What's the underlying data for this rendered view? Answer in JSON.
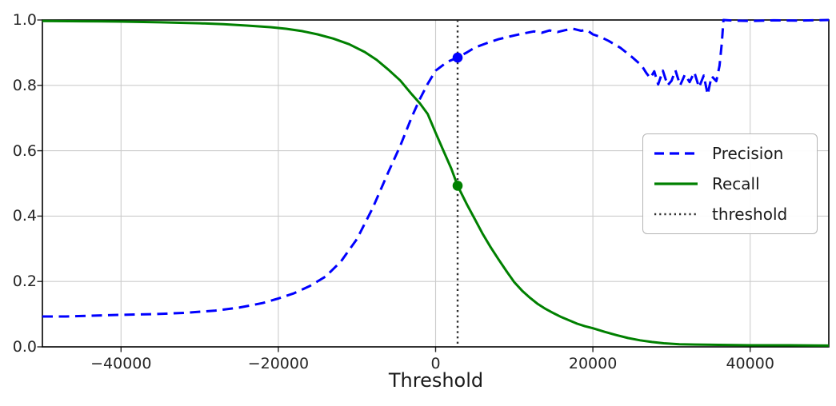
{
  "chart_data": {
    "type": "line",
    "title": "",
    "xlabel": "Threshold",
    "ylabel": "",
    "x_range": [
      -50000,
      50000
    ],
    "y_range": [
      0.0,
      1.0
    ],
    "x_ticks": [
      -40000,
      -20000,
      0,
      20000,
      40000
    ],
    "x_tick_labels": [
      "−40000",
      "−20000",
      "0",
      "20000",
      "40000"
    ],
    "y_ticks": [
      0.0,
      0.2,
      0.4,
      0.6,
      0.8,
      1.0
    ],
    "y_tick_labels": [
      "0.0",
      "0.2",
      "0.4",
      "0.6",
      "0.8",
      "1.0"
    ],
    "grid": true,
    "colors": {
      "precision": "#0000ff",
      "recall": "#008000",
      "threshold": "#2e2e2e",
      "grid": "#cccccc",
      "spine": "#000000",
      "tick": "#262626"
    },
    "legend": {
      "position": "center-right",
      "entries": [
        {
          "label": "Precision",
          "color": "#0000ff",
          "style": "dashed"
        },
        {
          "label": "Recall",
          "color": "#008000",
          "style": "solid"
        },
        {
          "label": "threshold",
          "color": "#2e2e2e",
          "style": "dotted"
        }
      ]
    },
    "threshold_line": {
      "x": 2800,
      "style": "dotted",
      "color": "#2e2e2e"
    },
    "markers": [
      {
        "series": "Precision",
        "x": 2800,
        "y": 0.885,
        "color": "#0000ff"
      },
      {
        "series": "Recall",
        "x": 2800,
        "y": 0.493,
        "color": "#008000"
      }
    ],
    "series": [
      {
        "name": "Precision",
        "color": "#0000ff",
        "style": "dashed",
        "points": [
          [
            -50000,
            0.093
          ],
          [
            -47000,
            0.093
          ],
          [
            -44000,
            0.095
          ],
          [
            -40000,
            0.098
          ],
          [
            -36000,
            0.1
          ],
          [
            -32000,
            0.104
          ],
          [
            -28000,
            0.111
          ],
          [
            -25000,
            0.12
          ],
          [
            -22000,
            0.134
          ],
          [
            -20000,
            0.148
          ],
          [
            -18000,
            0.164
          ],
          [
            -16000,
            0.186
          ],
          [
            -14000,
            0.215
          ],
          [
            -12000,
            0.262
          ],
          [
            -10000,
            0.33
          ],
          [
            -8000,
            0.425
          ],
          [
            -6000,
            0.535
          ],
          [
            -4500,
            0.615
          ],
          [
            -3000,
            0.705
          ],
          [
            -2000,
            0.758
          ],
          [
            -1000,
            0.805
          ],
          [
            0,
            0.845
          ],
          [
            1500,
            0.872
          ],
          [
            2800,
            0.885
          ],
          [
            4000,
            0.901
          ],
          [
            5000,
            0.916
          ],
          [
            6500,
            0.929
          ],
          [
            8000,
            0.941
          ],
          [
            9500,
            0.95
          ],
          [
            11000,
            0.958
          ],
          [
            12500,
            0.965
          ],
          [
            13500,
            0.961
          ],
          [
            14500,
            0.968
          ],
          [
            15500,
            0.963
          ],
          [
            16500,
            0.969
          ],
          [
            17500,
            0.973
          ],
          [
            18500,
            0.967
          ],
          [
            19200,
            0.97
          ],
          [
            20000,
            0.956
          ],
          [
            21000,
            0.948
          ],
          [
            22000,
            0.936
          ],
          [
            23500,
            0.915
          ],
          [
            25000,
            0.886
          ],
          [
            26200,
            0.861
          ],
          [
            26800,
            0.838
          ],
          [
            27300,
            0.822
          ],
          [
            27800,
            0.843
          ],
          [
            28300,
            0.803
          ],
          [
            28900,
            0.845
          ],
          [
            29500,
            0.8
          ],
          [
            30000,
            0.814
          ],
          [
            30500,
            0.846
          ],
          [
            31100,
            0.8
          ],
          [
            31700,
            0.833
          ],
          [
            32300,
            0.81
          ],
          [
            32900,
            0.84
          ],
          [
            33500,
            0.794
          ],
          [
            34100,
            0.83
          ],
          [
            34600,
            0.772
          ],
          [
            35100,
            0.828
          ],
          [
            35700,
            0.813
          ],
          [
            36100,
            0.86
          ],
          [
            36400,
            0.93
          ],
          [
            36600,
            1.0
          ],
          [
            38000,
            0.998
          ],
          [
            40000,
            0.997
          ],
          [
            43000,
            0.999
          ],
          [
            46000,
            0.998
          ],
          [
            50000,
            1.0
          ]
        ]
      },
      {
        "name": "Recall",
        "color": "#008000",
        "style": "solid",
        "points": [
          [
            -50000,
            0.997
          ],
          [
            -45000,
            0.996
          ],
          [
            -40000,
            0.995
          ],
          [
            -35000,
            0.993
          ],
          [
            -30000,
            0.99
          ],
          [
            -27000,
            0.987
          ],
          [
            -24000,
            0.983
          ],
          [
            -21000,
            0.978
          ],
          [
            -19000,
            0.973
          ],
          [
            -17000,
            0.966
          ],
          [
            -15000,
            0.956
          ],
          [
            -13000,
            0.943
          ],
          [
            -11000,
            0.926
          ],
          [
            -9000,
            0.902
          ],
          [
            -7500,
            0.878
          ],
          [
            -6000,
            0.848
          ],
          [
            -4500,
            0.815
          ],
          [
            -3000,
            0.772
          ],
          [
            -2000,
            0.745
          ],
          [
            -1000,
            0.712
          ],
          [
            0,
            0.655
          ],
          [
            1000,
            0.6
          ],
          [
            2000,
            0.545
          ],
          [
            2800,
            0.493
          ],
          [
            4000,
            0.435
          ],
          [
            5000,
            0.39
          ],
          [
            6000,
            0.345
          ],
          [
            7000,
            0.305
          ],
          [
            8000,
            0.268
          ],
          [
            9000,
            0.232
          ],
          [
            10000,
            0.198
          ],
          [
            11000,
            0.172
          ],
          [
            12000,
            0.15
          ],
          [
            13000,
            0.131
          ],
          [
            14000,
            0.116
          ],
          [
            15000,
            0.103
          ],
          [
            16000,
            0.091
          ],
          [
            17000,
            0.081
          ],
          [
            18000,
            0.071
          ],
          [
            19000,
            0.063
          ],
          [
            20000,
            0.057
          ],
          [
            21500,
            0.046
          ],
          [
            23000,
            0.036
          ],
          [
            24500,
            0.027
          ],
          [
            26000,
            0.02
          ],
          [
            27500,
            0.015
          ],
          [
            29000,
            0.011
          ],
          [
            31000,
            0.008
          ],
          [
            33000,
            0.007
          ],
          [
            36000,
            0.006
          ],
          [
            40000,
            0.005
          ],
          [
            45000,
            0.005
          ],
          [
            50000,
            0.004
          ]
        ]
      }
    ]
  }
}
